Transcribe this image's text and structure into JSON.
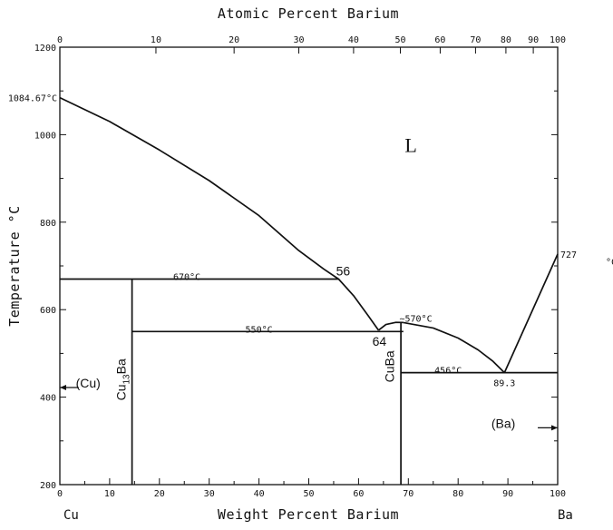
{
  "chart_data": {
    "type": "line",
    "title": "",
    "top_axis_label": "Atomic Percent Barium",
    "xlabel": "Weight Percent Barium",
    "ylabel": "Temperature °C",
    "xlim": [
      0,
      100
    ],
    "ylim": [
      200,
      1200
    ],
    "x_ticks": [
      0,
      10,
      20,
      30,
      40,
      50,
      60,
      70,
      80,
      90,
      100
    ],
    "y_ticks": [
      200,
      400,
      600,
      800,
      1000,
      1200
    ],
    "top_ticks": [
      {
        "label": "0",
        "wt": 0
      },
      {
        "label": "10",
        "wt": 19.3
      },
      {
        "label": "20",
        "wt": 35.0
      },
      {
        "label": "30",
        "wt": 48.0
      },
      {
        "label": "40",
        "wt": 59.0
      },
      {
        "label": "50",
        "wt": 68.4
      },
      {
        "label": "60",
        "wt": 76.4
      },
      {
        "label": "70",
        "wt": 83.5
      },
      {
        "label": "80",
        "wt": 89.6
      },
      {
        "label": "90",
        "wt": 95.1
      },
      {
        "label": "100",
        "wt": 100
      }
    ],
    "left_end_label": "Cu",
    "right_end_label": "Ba",
    "grid": false,
    "legend": "none",
    "series": [
      {
        "kind": "liquidus",
        "points": [
          [
            0,
            1084.67
          ],
          [
            10,
            1030
          ],
          [
            20,
            965
          ],
          [
            30,
            895
          ],
          [
            40,
            815
          ],
          [
            48,
            735
          ],
          [
            53,
            693
          ],
          [
            56,
            670
          ],
          [
            59,
            632
          ],
          [
            62,
            585
          ],
          [
            64,
            553
          ]
        ]
      },
      {
        "kind": "liquidus",
        "points": [
          [
            64,
            553
          ],
          [
            65.5,
            566
          ],
          [
            67.5,
            571
          ],
          [
            69,
            570.5
          ]
        ]
      },
      {
        "kind": "liquidus",
        "points": [
          [
            69,
            570.5
          ],
          [
            75,
            558
          ],
          [
            80,
            535
          ],
          [
            84,
            508
          ],
          [
            87,
            482
          ],
          [
            89.3,
            456
          ]
        ]
      },
      {
        "kind": "liquidus",
        "points": [
          [
            89.3,
            456
          ],
          [
            100,
            727
          ]
        ]
      },
      {
        "kind": "isotherm",
        "points": [
          [
            0,
            670
          ],
          [
            56,
            670
          ]
        ]
      },
      {
        "kind": "isotherm",
        "points": [
          [
            14.5,
            550
          ],
          [
            69,
            550
          ]
        ]
      },
      {
        "kind": "isotherm",
        "points": [
          [
            68.5,
            456
          ],
          [
            100,
            456
          ]
        ]
      },
      {
        "kind": "compound",
        "points": [
          [
            14.5,
            670
          ],
          [
            14.5,
            200
          ]
        ]
      },
      {
        "kind": "compound",
        "points": [
          [
            68.5,
            570
          ],
          [
            68.5,
            200
          ]
        ]
      }
    ],
    "annotations": [
      {
        "text": "1084.67°C",
        "x": 0,
        "y": 1084.67,
        "anchor": "end",
        "dx": -3,
        "dy": 0
      },
      {
        "text": "670°C",
        "x": 25.5,
        "y": 670,
        "anchor": "middle",
        "dx": 0,
        "dy": -3
      },
      {
        "text": "550°C",
        "x": 40,
        "y": 550,
        "anchor": "middle",
        "dx": 0,
        "dy": -3
      },
      {
        "text": "~570°C",
        "x": 71.5,
        "y": 570,
        "anchor": "middle",
        "dx": 0,
        "dy": -5
      },
      {
        "text": "456°C",
        "x": 78,
        "y": 456,
        "anchor": "middle",
        "dx": 0,
        "dy": -3
      },
      {
        "text": "89.3",
        "x": 89.3,
        "y": 456,
        "anchor": "middle",
        "dx": 0,
        "dy": 11
      },
      {
        "text": "727",
        "x": 100,
        "y": 727,
        "anchor": "start",
        "dx": 3,
        "dy": 0
      }
    ],
    "annotations_large": [
      {
        "text": "56",
        "x": 56,
        "y": 670,
        "anchor": "middle",
        "dx": 5,
        "dy": -4
      },
      {
        "text": "64",
        "x": 64,
        "y": 553,
        "anchor": "middle",
        "dx": 1,
        "dy": 17
      }
    ],
    "phase_labels": [
      {
        "text": "L",
        "x": 70.5,
        "y": 960
      },
      {
        "text": "(Cu)",
        "x": 3.2,
        "y": 422
      },
      {
        "text": "(Ba)",
        "x": 91.5,
        "y": 330
      }
    ],
    "compound_labels": [
      {
        "text": "Cu13Ba",
        "x": 13.2,
        "y": 440
      },
      {
        "text": "CuBa",
        "x": 67.1,
        "y": 470
      }
    ],
    "arrows": [
      {
        "from_x": 3.8,
        "to_x": 0,
        "y": 422
      },
      {
        "from_x": 96,
        "to_x": 100,
        "y": 330
      }
    ],
    "extra_marks": [
      {
        "text": "°C",
        "note": "clipped unit at right edge"
      }
    ]
  }
}
